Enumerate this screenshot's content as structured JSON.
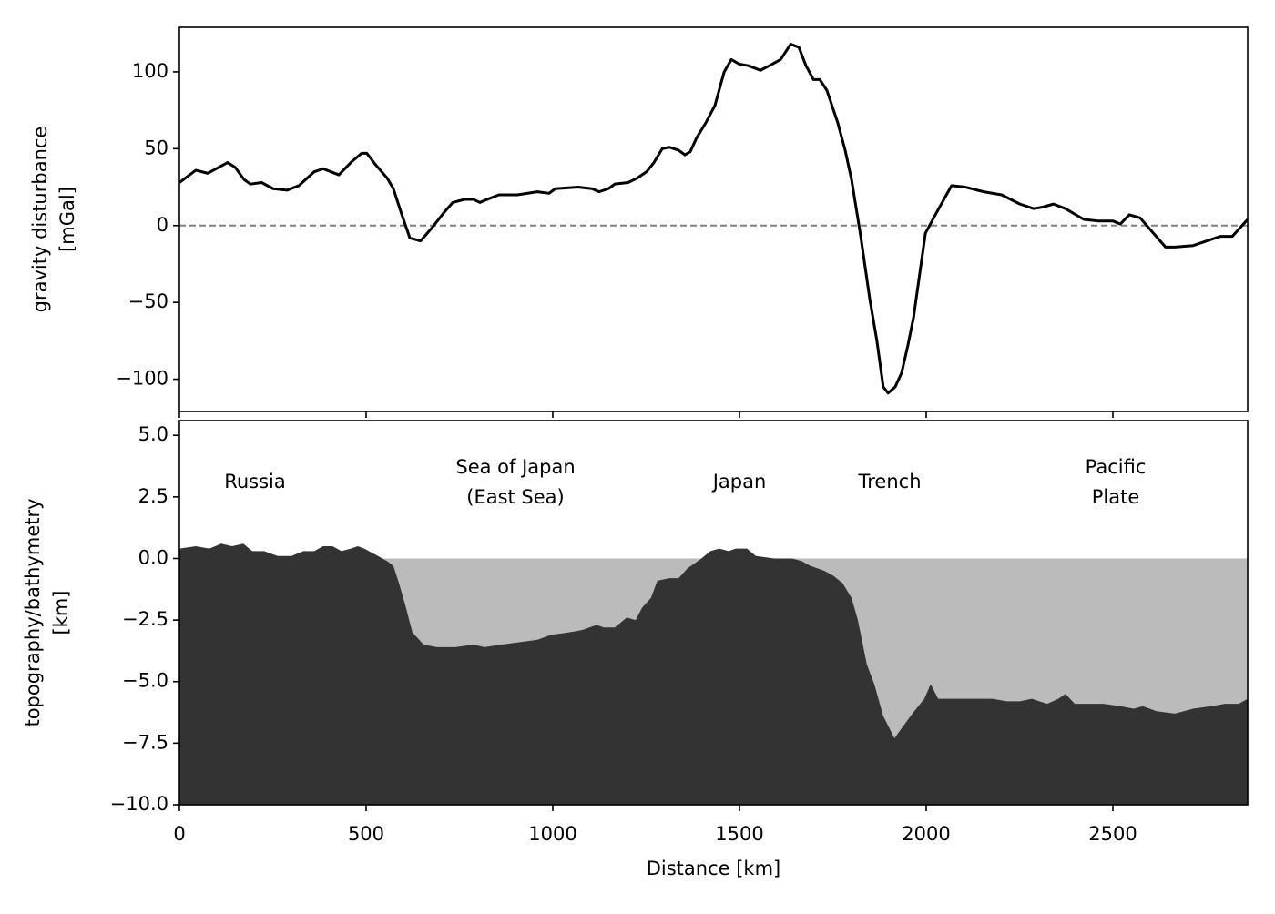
{
  "chart_data": [
    {
      "type": "line",
      "ylabel": [
        "gravity disturbance",
        "[mGal]"
      ],
      "x": [
        0,
        44,
        76,
        129,
        149,
        173,
        190,
        220,
        251,
        288,
        320,
        361,
        385,
        427,
        459,
        488,
        502,
        524,
        556,
        573,
        593,
        617,
        646,
        678,
        707,
        732,
        763,
        788,
        805,
        824,
        856,
        905,
        959,
        990,
        1007,
        1068,
        1105,
        1124,
        1149,
        1166,
        1202,
        1227,
        1251,
        1271,
        1293,
        1312,
        1337,
        1354,
        1368,
        1385,
        1410,
        1434,
        1459,
        1478,
        1500,
        1524,
        1556,
        1580,
        1610,
        1637,
        1659,
        1678,
        1698,
        1715,
        1734,
        1763,
        1783,
        1800,
        1824,
        1849,
        1868,
        1885,
        1898,
        1917,
        1934,
        1951,
        1966,
        1998,
        2020,
        2068,
        2105,
        2154,
        2202,
        2251,
        2288,
        2312,
        2341,
        2373,
        2422,
        2459,
        2500,
        2520,
        2544,
        2573,
        2605,
        2641,
        2666,
        2715,
        2788,
        2820,
        2861
      ],
      "series": [
        {
          "color": "#000000",
          "values": [
            28,
            36,
            34,
            41,
            38,
            30,
            27,
            28,
            24,
            23,
            26,
            35,
            37,
            33,
            41,
            47,
            47,
            40,
            31,
            24,
            9,
            -8,
            -10,
            -1,
            8,
            15,
            17,
            17,
            15,
            17,
            20,
            20,
            22,
            21,
            24,
            25,
            24,
            22,
            24,
            27,
            28,
            31,
            35,
            41,
            50,
            51,
            49,
            46,
            48,
            57,
            67,
            78,
            100,
            108,
            105,
            104,
            101,
            104,
            108,
            118,
            116,
            104,
            95,
            95,
            88,
            67,
            49,
            30,
            -6,
            -48,
            -75,
            -105,
            -109,
            -105,
            -96,
            -78,
            -60,
            -5,
            5,
            26,
            25,
            22,
            20,
            14,
            11,
            12,
            14,
            11,
            4,
            3,
            3,
            1,
            7,
            5,
            -4,
            -14,
            -14,
            -13,
            -7,
            -7,
            4
          ]
        }
      ],
      "hline": 0,
      "hline_color": "#808080",
      "xlim": [
        0,
        2861
      ],
      "ylim": [
        -121,
        129
      ],
      "xticks": [
        0,
        500,
        1000,
        1500,
        2000,
        2500
      ],
      "xtick_labels": false,
      "yticks": [
        {
          "value": -100,
          "label": "−100"
        },
        {
          "value": -50,
          "label": "−50"
        },
        0,
        50,
        100
      ]
    },
    {
      "type": "area",
      "ylabel": [
        "topography/bathymetry",
        "[km]"
      ],
      "xlabel": "Distance [km]",
      "x": [
        0,
        44,
        80,
        112,
        141,
        171,
        195,
        227,
        263,
        300,
        332,
        361,
        385,
        410,
        434,
        459,
        478,
        495,
        520,
        556,
        573,
        588,
        605,
        624,
        654,
        690,
        739,
        788,
        817,
        861,
        910,
        959,
        995,
        1044,
        1080,
        1117,
        1137,
        1166,
        1198,
        1222,
        1239,
        1263,
        1280,
        1312,
        1337,
        1361,
        1398,
        1422,
        1446,
        1471,
        1490,
        1520,
        1544,
        1593,
        1641,
        1666,
        1690,
        1727,
        1751,
        1776,
        1800,
        1817,
        1841,
        1861,
        1885,
        1915,
        1934,
        1963,
        1995,
        2012,
        2032,
        2068,
        2117,
        2178,
        2215,
        2251,
        2283,
        2324,
        2354,
        2373,
        2398,
        2434,
        2476,
        2520,
        2556,
        2580,
        2617,
        2666,
        2715,
        2763,
        2800,
        2837,
        2861
      ],
      "series": [
        {
          "color": "#333333",
          "values": [
            0.4,
            0.5,
            0.4,
            0.6,
            0.5,
            0.6,
            0.3,
            0.3,
            0.1,
            0.1,
            0.3,
            0.3,
            0.5,
            0.5,
            0.3,
            0.4,
            0.5,
            0.4,
            0.2,
            -0.1,
            -0.3,
            -1.0,
            -1.9,
            -3.0,
            -3.5,
            -3.6,
            -3.6,
            -3.5,
            -3.6,
            -3.5,
            -3.4,
            -3.3,
            -3.1,
            -3.0,
            -2.9,
            -2.7,
            -2.8,
            -2.8,
            -2.4,
            -2.5,
            -2.0,
            -1.6,
            -0.9,
            -0.8,
            -0.8,
            -0.4,
            0.0,
            0.3,
            0.4,
            0.3,
            0.4,
            0.4,
            0.1,
            0.0,
            0.0,
            -0.1,
            -0.3,
            -0.5,
            -0.7,
            -1.0,
            -1.6,
            -2.5,
            -4.3,
            -5.1,
            -6.4,
            -7.3,
            -6.9,
            -6.3,
            -5.7,
            -5.1,
            -5.7,
            -5.7,
            -5.7,
            -5.7,
            -5.8,
            -5.8,
            -5.7,
            -5.9,
            -5.7,
            -5.5,
            -5.9,
            -5.9,
            -5.9,
            -6.0,
            -6.1,
            -6.0,
            -6.2,
            -6.3,
            -6.1,
            -6.0,
            -5.9,
            -5.9,
            -5.7
          ]
        }
      ],
      "sea_level": 0,
      "water_color": "#bbbbbb",
      "xlim": [
        0,
        2861
      ],
      "ylim": [
        -10,
        5.6
      ],
      "xticks": [
        0,
        500,
        1000,
        1500,
        2000,
        2500
      ],
      "xtick_labels": true,
      "yticks": [
        {
          "value": -10,
          "label": "−10.0"
        },
        {
          "value": -7.5,
          "label": "−7.5"
        },
        {
          "value": -5,
          "label": "−5.0"
        },
        {
          "value": -2.5,
          "label": "−2.5"
        },
        {
          "value": 0,
          "label": "0.0"
        },
        2.5,
        {
          "value": 5,
          "label": "5.0"
        }
      ],
      "annotations": [
        [
          "Russia"
        ],
        [
          "Sea of Japan",
          "(East Sea)"
        ],
        [
          "Japan"
        ],
        [
          "Trench"
        ],
        [
          "Pacific",
          "Plate"
        ]
      ]
    }
  ]
}
